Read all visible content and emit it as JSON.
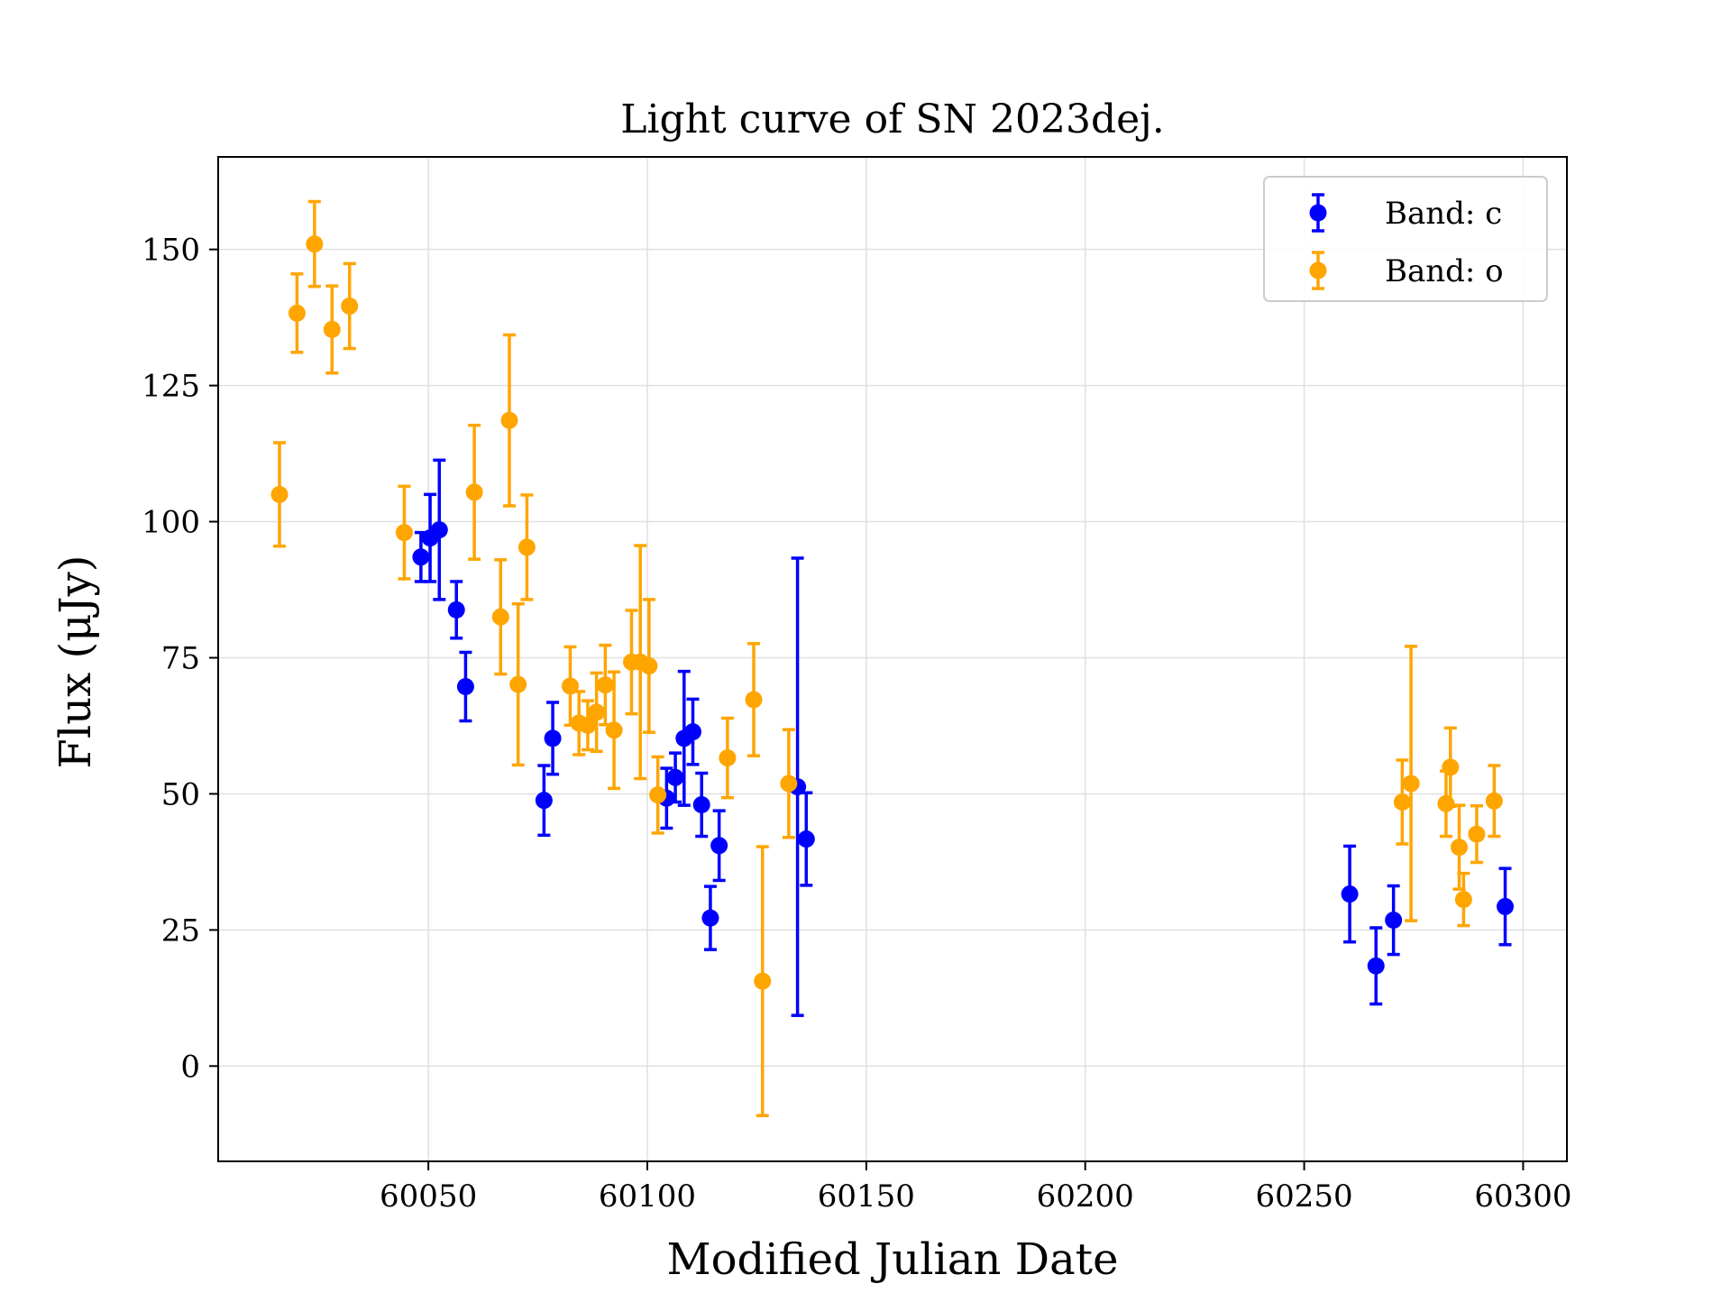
{
  "chart_data": {
    "type": "scatter",
    "title": "Light curve of SN 2023dej.",
    "xlabel": "Modified Julian Date",
    "ylabel": "Flux (μJy)",
    "xlim": [
      60002,
      60310
    ],
    "ylim": [
      -17.5,
      167
    ],
    "xticks": [
      60050,
      60100,
      60150,
      60200,
      60250,
      60300
    ],
    "yticks": [
      0,
      25,
      50,
      75,
      100,
      125,
      150
    ],
    "grid": true,
    "legend_position": "top-right",
    "error_bars": true,
    "series": [
      {
        "name": "Band: c",
        "color": "#0000ff",
        "points": [
          {
            "x": 60048.3,
            "y": 93.5,
            "err": 4.5
          },
          {
            "x": 60050.4,
            "y": 97.0,
            "err": 8.0
          },
          {
            "x": 60052.5,
            "y": 98.5,
            "err": 12.8
          },
          {
            "x": 60056.4,
            "y": 83.8,
            "err": 5.2
          },
          {
            "x": 60058.5,
            "y": 69.7,
            "err": 6.3
          },
          {
            "x": 60076.4,
            "y": 48.8,
            "err": 6.4
          },
          {
            "x": 60078.4,
            "y": 60.2,
            "err": 6.6
          },
          {
            "x": 60104.4,
            "y": 49.2,
            "err": 5.5
          },
          {
            "x": 60106.4,
            "y": 53.0,
            "err": 4.5
          },
          {
            "x": 60108.4,
            "y": 60.2,
            "err": 12.3
          },
          {
            "x": 60110.4,
            "y": 61.4,
            "err": 6.0
          },
          {
            "x": 60112.4,
            "y": 48.0,
            "err": 5.8
          },
          {
            "x": 60114.4,
            "y": 27.2,
            "err": 5.8
          },
          {
            "x": 60116.4,
            "y": 40.5,
            "err": 6.4
          },
          {
            "x": 60134.3,
            "y": 51.3,
            "err": 42.0
          },
          {
            "x": 60136.3,
            "y": 41.7,
            "err": 8.5
          },
          {
            "x": 60260.4,
            "y": 31.6,
            "err": 8.8
          },
          {
            "x": 60266.4,
            "y": 18.4,
            "err": 7.0
          },
          {
            "x": 60270.4,
            "y": 26.8,
            "err": 6.3
          },
          {
            "x": 60295.9,
            "y": 29.3,
            "err": 7.0
          }
        ]
      },
      {
        "name": "Band: o",
        "color": "#ffa500",
        "points": [
          {
            "x": 60016.0,
            "y": 105.0,
            "err": 9.5
          },
          {
            "x": 60020.0,
            "y": 138.3,
            "err": 7.2
          },
          {
            "x": 60024.0,
            "y": 151.0,
            "err": 7.8
          },
          {
            "x": 60028.0,
            "y": 135.3,
            "err": 8.0
          },
          {
            "x": 60032.0,
            "y": 139.6,
            "err": 7.8
          },
          {
            "x": 60044.5,
            "y": 98.0,
            "err": 8.5
          },
          {
            "x": 60060.5,
            "y": 105.4,
            "err": 12.3
          },
          {
            "x": 60066.5,
            "y": 82.5,
            "err": 10.5
          },
          {
            "x": 60068.5,
            "y": 118.6,
            "err": 15.7
          },
          {
            "x": 60070.5,
            "y": 70.1,
            "err": 14.8
          },
          {
            "x": 60072.5,
            "y": 95.3,
            "err": 9.6
          },
          {
            "x": 60082.4,
            "y": 69.8,
            "err": 7.2
          },
          {
            "x": 60084.4,
            "y": 63.0,
            "err": 5.8
          },
          {
            "x": 60086.4,
            "y": 62.6,
            "err": 4.5
          },
          {
            "x": 60088.4,
            "y": 65.0,
            "err": 7.2
          },
          {
            "x": 60090.4,
            "y": 70.0,
            "err": 7.3
          },
          {
            "x": 60092.4,
            "y": 61.7,
            "err": 10.7
          },
          {
            "x": 60096.4,
            "y": 74.2,
            "err": 9.5
          },
          {
            "x": 60098.4,
            "y": 74.2,
            "err": 21.4
          },
          {
            "x": 60100.4,
            "y": 73.5,
            "err": 12.2
          },
          {
            "x": 60102.4,
            "y": 49.8,
            "err": 7.0
          },
          {
            "x": 60118.3,
            "y": 56.6,
            "err": 7.3
          },
          {
            "x": 60124.3,
            "y": 67.3,
            "err": 10.3
          },
          {
            "x": 60126.3,
            "y": 15.6,
            "err": 24.7
          },
          {
            "x": 60132.3,
            "y": 51.9,
            "err": 9.9
          },
          {
            "x": 60272.4,
            "y": 48.5,
            "err": 7.7
          },
          {
            "x": 60274.4,
            "y": 51.9,
            "err": 25.2
          },
          {
            "x": 60282.4,
            "y": 48.2,
            "err": 6.0
          },
          {
            "x": 60283.4,
            "y": 54.9,
            "err": 7.2
          },
          {
            "x": 60285.4,
            "y": 40.2,
            "err": 7.7
          },
          {
            "x": 60286.4,
            "y": 30.6,
            "err": 4.8
          },
          {
            "x": 60289.4,
            "y": 42.6,
            "err": 5.2
          },
          {
            "x": 60293.4,
            "y": 48.7,
            "err": 6.5
          }
        ]
      }
    ]
  }
}
